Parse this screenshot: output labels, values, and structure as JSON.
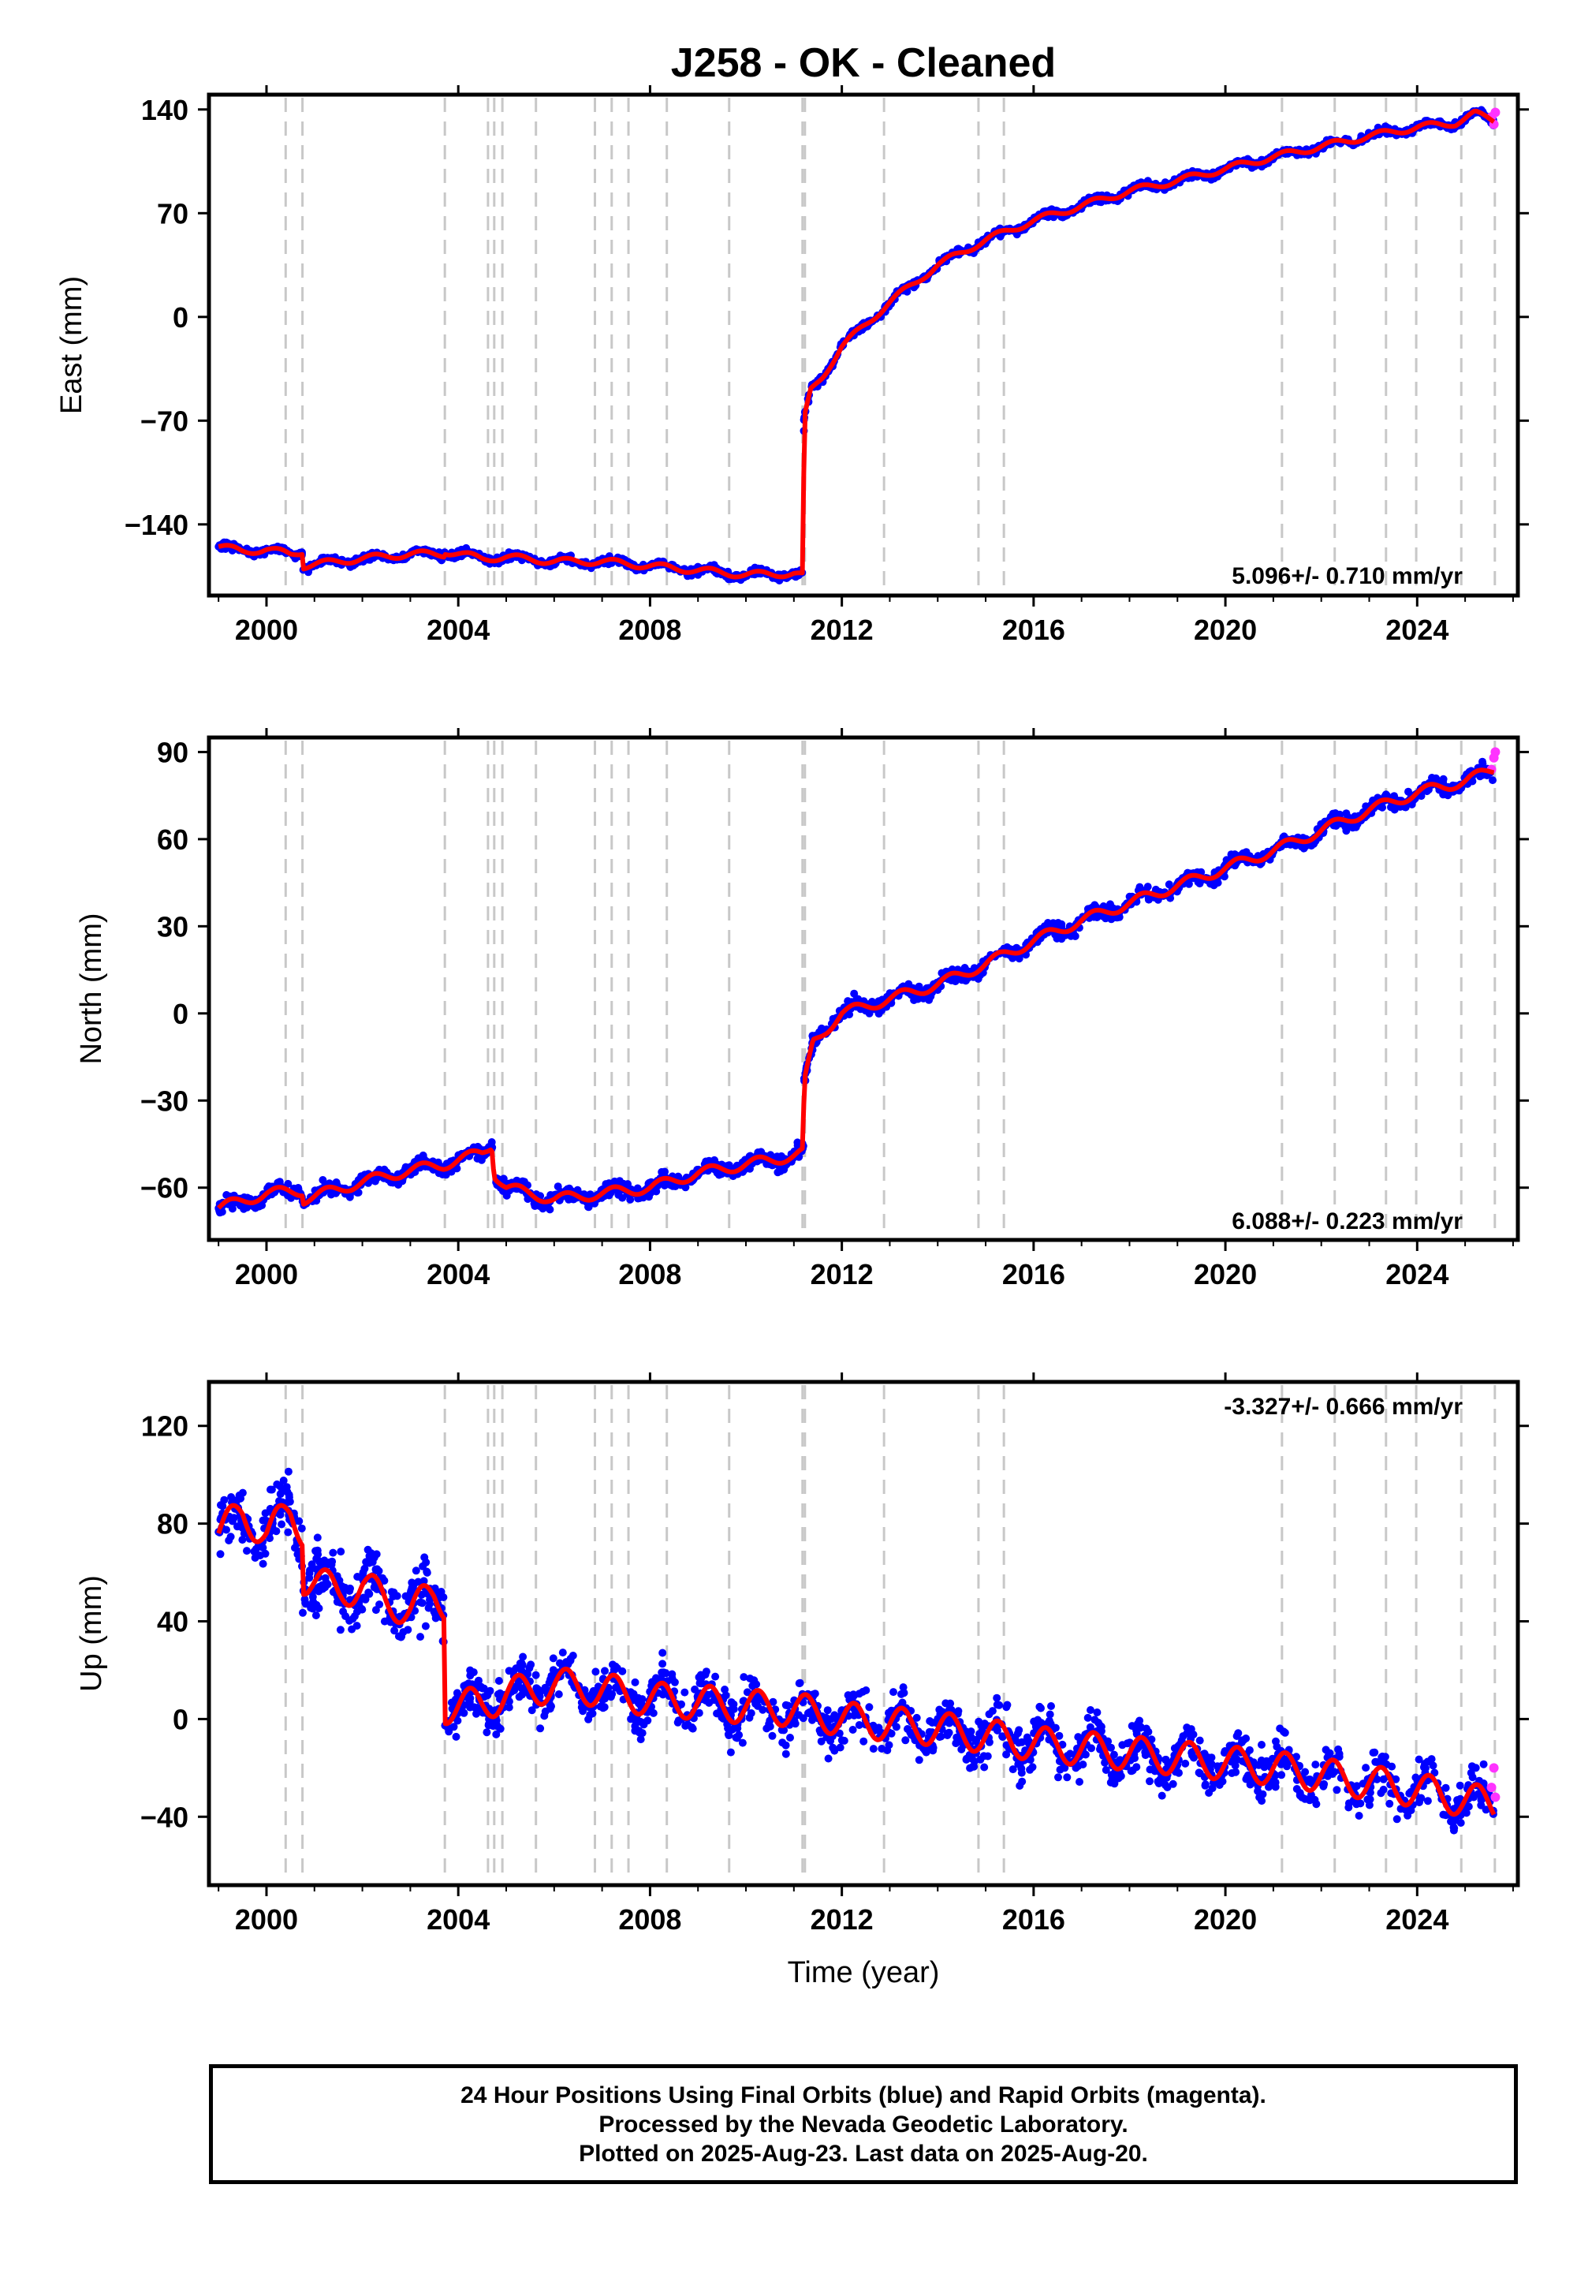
{
  "title": "J258  - OK - Cleaned",
  "colors": {
    "final_points": "#0000ff",
    "rapid_points": "#ff33ff",
    "model": "#ff0000",
    "events": "#c8c8c8",
    "axis": "#000000"
  },
  "event_years": [
    2000.4,
    2000.75,
    2003.72,
    2004.62,
    2004.75,
    2004.92,
    2005.62,
    2006.85,
    2007.2,
    2007.55,
    2008.35,
    2009.65,
    2011.18,
    2011.23,
    2012.88,
    2014.85,
    2015.38,
    2021.18,
    2022.28,
    2023.35,
    2023.98,
    2024.92,
    2025.62
  ],
  "xlabel": "Time (year)",
  "footer": {
    "line1": "24 Hour Positions Using Final Orbits (blue) and Rapid Orbits (magenta).",
    "line2": "Processed by the Nevada Geodetic Laboratory.",
    "line3": "Plotted on 2025-Aug-23. Last data on 2025-Aug-20."
  },
  "chart_data": [
    {
      "type": "scatter",
      "component": "East",
      "ylabel": "East (mm)",
      "rate_text": "5.096+/- 0.710 mm/yr",
      "xlim": [
        1998.8,
        2026.1
      ],
      "ylim": [
        -188,
        150
      ],
      "xticks": [
        2000,
        2004,
        2008,
        2012,
        2016,
        2020,
        2024
      ],
      "yticks": [
        -140,
        -70,
        0,
        70,
        140
      ],
      "series": [
        {
          "role": "final_orbits",
          "x": [
            1999.0,
            1999.5,
            2000.0,
            2000.5,
            2000.75,
            2000.76,
            2001.5,
            2002.0,
            2003.0,
            2003.7,
            2003.71,
            2004.5,
            2005.0,
            2006.0,
            2007.0,
            2008.0,
            2009.0,
            2010.0,
            2011.0,
            2011.2,
            2011.21,
            2011.35,
            2011.6,
            2012.0,
            2012.5,
            2013.0,
            2014.0,
            2015.0,
            2016.0,
            2017.0,
            2018.0,
            2019.0,
            2020.0,
            2021.0,
            2022.0,
            2023.0,
            2024.0,
            2024.8,
            2025.2,
            2025.6
          ],
          "y": [
            -155,
            -158,
            -157,
            -160,
            -158,
            -168,
            -165,
            -163,
            -160,
            -160,
            -158,
            -163,
            -162,
            -165,
            -165,
            -168,
            -171,
            -174,
            -173,
            -175,
            -70,
            -50,
            -40,
            -20,
            -5,
            10,
            35,
            52,
            65,
            75,
            85,
            92,
            100,
            108,
            115,
            122,
            128,
            131,
            137,
            133
          ]
        },
        {
          "role": "rapid_orbits",
          "x": [
            2025.55,
            2025.6,
            2025.63
          ],
          "y": [
            135,
            130,
            138
          ]
        },
        {
          "role": "model",
          "x": [
            1999.0,
            1999.5,
            2000.0,
            2000.5,
            2000.75,
            2000.76,
            2001.5,
            2002.0,
            2003.0,
            2003.7,
            2003.71,
            2004.5,
            2005.0,
            2006.0,
            2007.0,
            2008.0,
            2009.0,
            2010.0,
            2011.0,
            2011.2,
            2011.21,
            2011.35,
            2011.6,
            2012.0,
            2012.5,
            2013.0,
            2014.0,
            2015.0,
            2016.0,
            2017.0,
            2018.0,
            2019.0,
            2020.0,
            2021.0,
            2022.0,
            2023.0,
            2024.0,
            2024.8,
            2025.2,
            2025.6
          ],
          "y": [
            -155,
            -158,
            -157,
            -160,
            -158,
            -168,
            -165,
            -163,
            -160,
            -160,
            -158,
            -163,
            -162,
            -165,
            -165,
            -168,
            -171,
            -174,
            -173,
            -175,
            -70,
            -50,
            -40,
            -20,
            -5,
            10,
            35,
            52,
            65,
            75,
            85,
            92,
            100,
            108,
            115,
            122,
            128,
            131,
            137,
            133
          ]
        }
      ]
    },
    {
      "type": "scatter",
      "component": "North",
      "ylabel": "North (mm)",
      "rate_text": "6.088+/- 0.223 mm/yr",
      "xlim": [
        1998.8,
        2026.1
      ],
      "ylim": [
        -78,
        95
      ],
      "xticks": [
        2000,
        2004,
        2008,
        2012,
        2016,
        2020,
        2024
      ],
      "yticks": [
        -60,
        -30,
        0,
        30,
        60,
        90
      ],
      "series": [
        {
          "role": "final_orbits",
          "x": [
            1999.0,
            2000.0,
            2000.75,
            2000.76,
            2001.0,
            2002.0,
            2003.0,
            2003.7,
            2004.5,
            2004.7,
            2004.75,
            2005.0,
            2006.0,
            2007.0,
            2008.0,
            2009.0,
            2010.0,
            2011.0,
            2011.2,
            2011.21,
            2011.4,
            2011.7,
            2012.0,
            2013.0,
            2014.0,
            2015.0,
            2016.0,
            2017.0,
            2018.0,
            2019.0,
            2020.0,
            2021.0,
            2022.0,
            2023.0,
            2024.0,
            2025.0,
            2025.6
          ],
          "y": [
            -67,
            -62,
            -61,
            -64,
            -63,
            -58,
            -54,
            -52,
            -48,
            -45,
            -55,
            -60,
            -64,
            -62,
            -60,
            -55,
            -52,
            -49,
            -48,
            -25,
            -10,
            -5,
            0,
            5,
            10,
            17,
            25,
            32,
            38,
            44,
            50,
            56,
            63,
            70,
            76,
            80,
            84
          ]
        },
        {
          "role": "rapid_orbits",
          "x": [
            2025.55,
            2025.6,
            2025.63
          ],
          "y": [
            84,
            88,
            90
          ]
        },
        {
          "role": "model",
          "x": [
            1999.0,
            2000.0,
            2000.75,
            2000.76,
            2001.0,
            2002.0,
            2003.0,
            2003.7,
            2004.5,
            2004.7,
            2004.75,
            2005.0,
            2006.0,
            2007.0,
            2008.0,
            2009.0,
            2010.0,
            2011.0,
            2011.2,
            2011.21,
            2011.4,
            2011.7,
            2012.0,
            2013.0,
            2014.0,
            2015.0,
            2016.0,
            2017.0,
            2018.0,
            2019.0,
            2020.0,
            2021.0,
            2022.0,
            2023.0,
            2024.0,
            2025.0,
            2025.6
          ],
          "y": [
            -67,
            -62,
            -61,
            -64,
            -63,
            -58,
            -54,
            -52,
            -48,
            -45,
            -55,
            -60,
            -64,
            -62,
            -60,
            -55,
            -52,
            -49,
            -48,
            -25,
            -10,
            -5,
            0,
            5,
            10,
            17,
            25,
            32,
            38,
            44,
            50,
            56,
            63,
            70,
            76,
            80,
            84
          ]
        }
      ]
    },
    {
      "type": "scatter",
      "component": "Up",
      "ylabel": "Up (mm)",
      "rate_text": "-3.327+/- 0.666 mm/yr",
      "xlim": [
        1998.8,
        2026.1
      ],
      "ylim": [
        -68,
        138
      ],
      "xticks": [
        2000,
        2004,
        2008,
        2012,
        2016,
        2020,
        2024
      ],
      "yticks": [
        -40,
        0,
        40,
        80,
        120
      ],
      "series": [
        {
          "role": "final_orbits",
          "x": [
            1999.0,
            1999.5,
            2000.0,
            2000.5,
            2000.75,
            2000.76,
            2001.5,
            2002.0,
            2002.5,
            2003.0,
            2003.5,
            2003.7,
            2003.71,
            2004.5,
            2005.0,
            2006.0,
            2007.0,
            2008.0,
            2009.0,
            2010.0,
            2011.0,
            2012.0,
            2013.0,
            2014.0,
            2015.0,
            2016.0,
            2017.0,
            2018.0,
            2019.0,
            2020.0,
            2021.0,
            2022.0,
            2023.0,
            2024.0,
            2025.0,
            2025.6
          ],
          "y": [
            76,
            84,
            76,
            84,
            78,
            58,
            52,
            55,
            48,
            45,
            50,
            48,
            5,
            6,
            10,
            14,
            12,
            8,
            7,
            5,
            4,
            0,
            -2,
            -4,
            -7,
            -10,
            -12,
            -14,
            -16,
            -18,
            -20,
            -23,
            -26,
            -29,
            -33,
            -35
          ]
        },
        {
          "role": "rapid_orbits",
          "x": [
            2025.55,
            2025.6,
            2025.63
          ],
          "y": [
            -28,
            -20,
            -32
          ]
        },
        {
          "role": "model",
          "x": [
            1999.0,
            1999.5,
            2000.0,
            2000.5,
            2000.75,
            2000.76,
            2001.5,
            2002.0,
            2002.5,
            2003.0,
            2003.5,
            2003.7,
            2003.71,
            2004.5,
            2005.0,
            2006.0,
            2007.0,
            2008.0,
            2009.0,
            2010.0,
            2011.0,
            2012.0,
            2013.0,
            2014.0,
            2015.0,
            2016.0,
            2017.0,
            2018.0,
            2019.0,
            2020.0,
            2021.0,
            2022.0,
            2023.0,
            2024.0,
            2025.0,
            2025.6
          ],
          "y": [
            76,
            84,
            76,
            84,
            78,
            58,
            52,
            55,
            48,
            45,
            50,
            48,
            5,
            6,
            10,
            14,
            12,
            8,
            7,
            5,
            4,
            0,
            -2,
            -4,
            -7,
            -10,
            -12,
            -14,
            -16,
            -18,
            -20,
            -23,
            -26,
            -29,
            -33,
            -35
          ]
        }
      ]
    }
  ]
}
